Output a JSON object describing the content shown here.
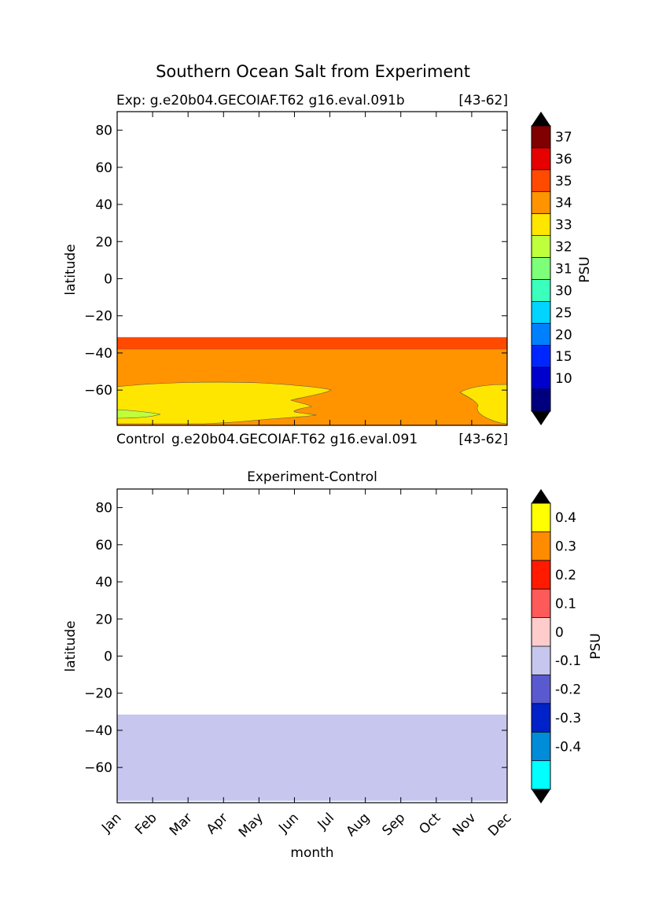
{
  "figure": {
    "suptitle": "Southern Ocean Salt from Experiment"
  },
  "chart_data": [
    {
      "type": "contour",
      "panel": "top",
      "title_left": "Exp:    g.e20b04.GECOIAF.T62 g16.eval.091b",
      "title_right": "[43-62]",
      "bottom_left": "Control",
      "bottom_mid": "g.e20b04.GECOIAF.T62 g16.eval.091",
      "bottom_right": "[43-62]",
      "xlabel": "",
      "ylabel": "latitude",
      "xlim": [
        0,
        11
      ],
      "ylim": [
        -79,
        90
      ],
      "yticks": [
        "80",
        "60",
        "40",
        "20",
        "0",
        "−20",
        "−40",
        "−60"
      ],
      "ytick_values": [
        80,
        60,
        40,
        20,
        0,
        -20,
        -40,
        -60
      ],
      "xtick_values": [
        0,
        1,
        2,
        3,
        4,
        5,
        6,
        7,
        8,
        9,
        10,
        11
      ],
      "data_lat_max": -31.5,
      "bands": [
        {
          "level": "35-36",
          "color": "#ff4a00",
          "lat_top": -31.5,
          "lat_bottom": -38
        },
        {
          "level": "34-35",
          "color": "#ff9400",
          "lat_top": -38,
          "lat_bottom": -79
        },
        {
          "level": "33-34",
          "color": "#ffe600",
          "region": "western_patch_and_eastern_patch"
        },
        {
          "level": "32-33",
          "color": "#bfff3c",
          "region": "small_jan_patch"
        }
      ],
      "colorbar": {
        "label": "PSU",
        "ticks": [
          "37",
          "36",
          "35",
          "34",
          "33",
          "32",
          "31",
          "30",
          "25",
          "20",
          "15",
          "10"
        ],
        "colors": [
          "#800000",
          "#e60000",
          "#ff4a00",
          "#ff9400",
          "#ffe600",
          "#bfff3c",
          "#7dff7a",
          "#3affbd",
          "#00d4ff",
          "#0080ff",
          "#0026ff",
          "#0000cd",
          "#00007f"
        ],
        "extend_color": "#000000"
      }
    },
    {
      "type": "contour",
      "panel": "bottom",
      "title": "Experiment-Control",
      "xlabel": "month",
      "ylabel": "latitude",
      "xlim": [
        0,
        11
      ],
      "ylim": [
        -79,
        90
      ],
      "yticks": [
        "80",
        "60",
        "40",
        "20",
        "0",
        "−20",
        "−40",
        "−60"
      ],
      "ytick_values": [
        80,
        60,
        40,
        20,
        0,
        -20,
        -40,
        -60
      ],
      "xticks": [
        "Jan",
        "Feb",
        "Mar",
        "Apr",
        "May",
        "Jun",
        "Jul",
        "Aug",
        "Sep",
        "Oct",
        "Nov",
        "Dec"
      ],
      "xtick_values": [
        0,
        1,
        2,
        3,
        4,
        5,
        6,
        7,
        8,
        9,
        10,
        11
      ],
      "bands": [
        {
          "level": "-0.1-0",
          "color": "#c6c6ee",
          "lat_top": -31.5,
          "lat_bottom": -78
        }
      ],
      "colorbar": {
        "label": "PSU",
        "ticks": [
          "0.4",
          "0.3",
          "0.2",
          "0.1",
          "0",
          "-0.1",
          "-0.2",
          "-0.3",
          "-0.4"
        ],
        "colors": [
          "#ffff00",
          "#ff8c00",
          "#ff1a00",
          "#ff5a5a",
          "#ffcccc",
          "#c6c6ee",
          "#5a5ad0",
          "#0022c8",
          "#008cd8",
          "#00ffff"
        ],
        "extend_color": "#000000"
      }
    }
  ]
}
